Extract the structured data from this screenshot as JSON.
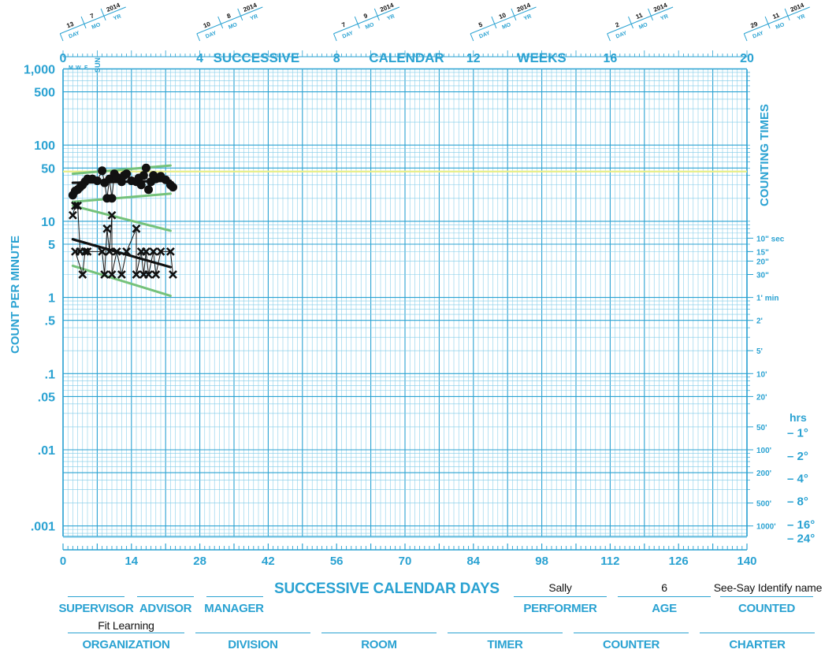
{
  "chart_data": {
    "type": "scatter",
    "title": "",
    "xlabel": "SUCCESSIVE CALENDAR DAYS",
    "ylabel": "COUNT PER MINUTE",
    "yscale": "log",
    "xlim": [
      0,
      140
    ],
    "ylim": [
      0.0007,
      1000
    ],
    "top_axis": {
      "ticks": [
        "0",
        "4",
        "8",
        "12",
        "16",
        "20"
      ],
      "words": [
        "SUCCESSIVE",
        "CALENDAR",
        "WEEKS"
      ],
      "weekday_marks": [
        "M",
        "W",
        "F",
        "SUN"
      ]
    },
    "date_boxes": [
      {
        "week": 0,
        "day": "13",
        "mo": "7",
        "yr": "2014"
      },
      {
        "week": 4,
        "day": "10",
        "mo": "8",
        "yr": "2014"
      },
      {
        "week": 8,
        "day": "7",
        "mo": "9",
        "yr": "2014"
      },
      {
        "week": 12,
        "day": "5",
        "mo": "10",
        "yr": "2014"
      },
      {
        "week": 16,
        "day": "2",
        "mo": "11",
        "yr": "2014"
      },
      {
        "week": 20,
        "day": "29",
        "mo": "11",
        "yr": "2014"
      }
    ],
    "date_box_labels": {
      "day": "DAY",
      "mo": "MO",
      "yr": "YR"
    },
    "x_tick_labels": [
      "0",
      "14",
      "28",
      "42",
      "56",
      "70",
      "84",
      "98",
      "112",
      "126",
      "140"
    ],
    "y_tick_labels": [
      {
        "value": 1000,
        "label": "1,000"
      },
      {
        "value": 500,
        "label": "500"
      },
      {
        "value": 100,
        "label": "100"
      },
      {
        "value": 50,
        "label": "50"
      },
      {
        "value": 10,
        "label": "10"
      },
      {
        "value": 5,
        "label": "5"
      },
      {
        "value": 1,
        "label": "1"
      },
      {
        "value": 0.5,
        "label": ".5"
      },
      {
        "value": 0.1,
        "label": ".1"
      },
      {
        "value": 0.05,
        "label": ".05"
      },
      {
        "value": 0.01,
        "label": ".01"
      },
      {
        "value": 0.001,
        "label": ".001"
      }
    ],
    "counting_times_title": "COUNTING TIMES",
    "counting_times": [
      {
        "value": 6,
        "label": "10\" sec"
      },
      {
        "value": 4,
        "label": "15\""
      },
      {
        "value": 3,
        "label": "20\""
      },
      {
        "value": 2,
        "label": "30\""
      },
      {
        "value": 1,
        "label": "1' min"
      },
      {
        "value": 0.5,
        "label": "2'"
      },
      {
        "value": 0.2,
        "label": "5'"
      },
      {
        "value": 0.1,
        "label": "10'"
      },
      {
        "value": 0.05,
        "label": "20'"
      },
      {
        "value": 0.02,
        "label": "50'"
      },
      {
        "value": 0.01,
        "label": "100'"
      },
      {
        "value": 0.005,
        "label": "200'"
      },
      {
        "value": 0.002,
        "label": "500'"
      },
      {
        "value": 0.001,
        "label": "1000'"
      }
    ],
    "hours_title": "hrs",
    "hours": [
      {
        "value": 0.0167,
        "label": "– 1°"
      },
      {
        "value": 0.0083,
        "label": "– 2°"
      },
      {
        "value": 0.0042,
        "label": "– 4°"
      },
      {
        "value": 0.0021,
        "label": "– 8°"
      },
      {
        "value": 0.00104,
        "label": "– 16°"
      },
      {
        "value": 0.00069,
        "label": "– 24°"
      }
    ],
    "aim_line": {
      "value": 45,
      "color": "#e8ee86"
    },
    "series": [
      {
        "marker": "dot",
        "color": "#111111",
        "points": [
          [
            2,
            22
          ],
          [
            2.5,
            25
          ],
          [
            3,
            26
          ],
          [
            3.5,
            28
          ],
          [
            4,
            30
          ],
          [
            4.5,
            33
          ],
          [
            5,
            36
          ],
          [
            6,
            36
          ],
          [
            7,
            34
          ],
          [
            8,
            46
          ],
          [
            8.5,
            32
          ],
          [
            9,
            20
          ],
          [
            9.5,
            36
          ],
          [
            10,
            20
          ],
          [
            10.5,
            42
          ],
          [
            11,
            38
          ],
          [
            12,
            33
          ],
          [
            12.5,
            40
          ],
          [
            13,
            42
          ],
          [
            14,
            34
          ],
          [
            15,
            33
          ],
          [
            15.5,
            37
          ],
          [
            16,
            30
          ],
          [
            16.5,
            40
          ],
          [
            17,
            50
          ],
          [
            17.5,
            26
          ],
          [
            18,
            33
          ],
          [
            18.5,
            40
          ],
          [
            19,
            36
          ],
          [
            20,
            39
          ],
          [
            21,
            35
          ],
          [
            22,
            30
          ],
          [
            22.5,
            28
          ]
        ]
      },
      {
        "marker": "x",
        "color": "#111111",
        "points": [
          [
            2,
            12
          ],
          [
            2.5,
            16
          ],
          [
            3,
            16
          ],
          [
            3.5,
            4
          ],
          [
            2.5,
            4
          ],
          [
            4,
            2
          ],
          [
            4.5,
            4
          ],
          [
            5,
            4
          ],
          [
            8,
            4
          ],
          [
            8.5,
            2
          ],
          [
            9,
            8
          ],
          [
            9.5,
            4
          ],
          [
            10,
            12
          ],
          [
            10,
            2
          ],
          [
            11,
            4
          ],
          [
            12,
            2
          ],
          [
            13,
            4
          ],
          [
            15,
            8
          ],
          [
            15,
            2
          ],
          [
            16,
            4
          ],
          [
            16.5,
            2
          ],
          [
            17,
            4
          ],
          [
            17.5,
            2
          ],
          [
            18.5,
            4
          ],
          [
            19,
            2
          ],
          [
            20,
            4
          ],
          [
            22,
            4
          ],
          [
            22.5,
            2
          ]
        ]
      }
    ],
    "fit_lines": [
      {
        "color": "#111111",
        "x": [
          2,
          22
        ],
        "y": [
          32,
          34
        ]
      },
      {
        "color": "#111111",
        "x": [
          2,
          22
        ],
        "y": [
          5.8,
          2.5
        ]
      },
      {
        "color": "#75c27a",
        "x": [
          2,
          22
        ],
        "y": [
          42,
          54
        ]
      },
      {
        "color": "#75c27a",
        "x": [
          2,
          22
        ],
        "y": [
          18,
          23
        ]
      },
      {
        "color": "#75c27a",
        "x": [
          2,
          22
        ],
        "y": [
          16,
          7.5
        ]
      },
      {
        "color": "#75c27a",
        "x": [
          2,
          22
        ],
        "y": [
          2.6,
          1.05
        ]
      }
    ]
  },
  "footer": {
    "title": "SUCCESSIVE CALENDAR DAYS",
    "row1": [
      {
        "label": "SUPERVISOR",
        "value": ""
      },
      {
        "label": "ADVISOR",
        "value": ""
      },
      {
        "label": "MANAGER",
        "value": ""
      },
      {
        "label": "PERFORMER",
        "value": "Sally"
      },
      {
        "label": "AGE",
        "value": "6"
      },
      {
        "label": "COUNTED",
        "value": "See-Say Identify name"
      }
    ],
    "row2": [
      {
        "label": "ORGANIZATION",
        "value": "Fit Learning"
      },
      {
        "label": "DIVISION",
        "value": ""
      },
      {
        "label": "ROOM",
        "value": ""
      },
      {
        "label": "TIMER",
        "value": ""
      },
      {
        "label": "COUNTER",
        "value": ""
      },
      {
        "label": "CHARTER",
        "value": ""
      }
    ]
  },
  "colors": {
    "grid": "#2aa2d2",
    "grid_light": "#7fcbe8",
    "data": "#111111",
    "trend": "#75c27a",
    "aim": "#e8ee86"
  }
}
